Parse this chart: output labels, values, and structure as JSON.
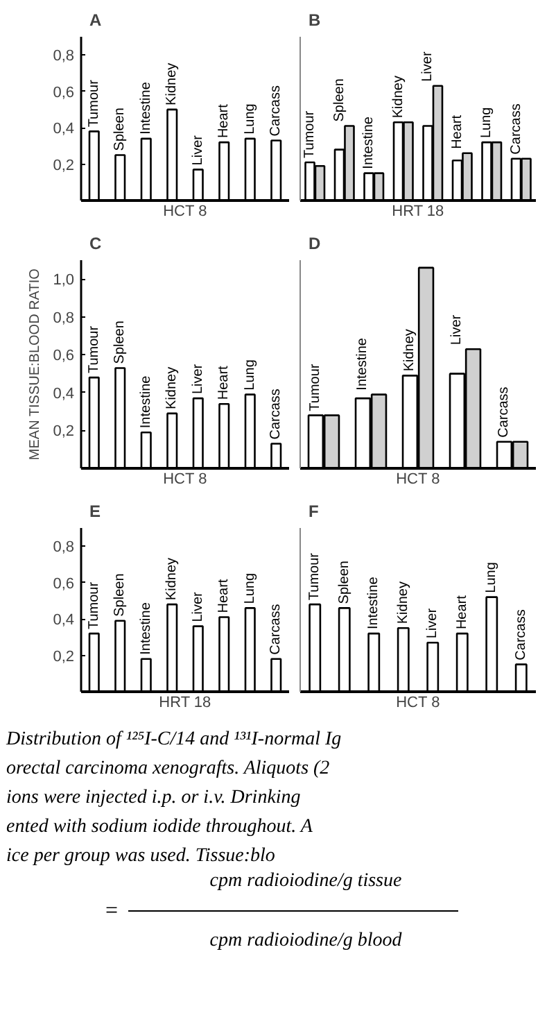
{
  "chart_data": [
    {
      "type": "bar",
      "title": "A",
      "xlabel": "HCT 8",
      "categories": [
        "Tumour",
        "Spleen",
        "Intestine",
        "Kidney",
        "Liver",
        "Heart",
        "Lung",
        "Carcass"
      ],
      "values": [
        0.38,
        0.25,
        0.34,
        0.5,
        0.17,
        0.32,
        0.34,
        0.33
      ],
      "color": "#ffffff",
      "ylim": [
        0,
        0.9
      ],
      "yticks": [
        {
          "value": 0.2,
          "label": "0,2"
        },
        {
          "value": 0.4,
          "label": "0,4"
        },
        {
          "value": 0.6,
          "label": "0,6"
        },
        {
          "value": 0.8,
          "label": "0,8"
        }
      ],
      "tick_labels": "y"
    },
    {
      "type": "bar",
      "title": "B",
      "xlabel": "HRT 18",
      "categories": [
        "Tumour",
        "Spleen",
        "Intestine",
        "Kidney",
        "Liver",
        "Heart",
        "Lung",
        "Carcass"
      ],
      "series": [
        {
          "color": "#ffffff",
          "values": [
            0.21,
            0.28,
            0.15,
            0.43,
            0.41,
            0.22,
            0.32,
            0.23
          ]
        },
        {
          "color": "#d0d0d0",
          "values": [
            0.19,
            0.41,
            0.15,
            0.43,
            0.63,
            0.26,
            0.32,
            0.23
          ]
        }
      ],
      "ylim": [
        0,
        0.9
      ],
      "tick_labels": false
    },
    {
      "type": "bar",
      "title": "C",
      "xlabel": "HCT 8",
      "ylabel": "MEAN TISSUE:BLOOD RATIO",
      "categories": [
        "Tumour",
        "Spleen",
        "Intestine",
        "Kidney",
        "Liver",
        "Heart",
        "Lung",
        "Carcass"
      ],
      "values": [
        0.48,
        0.53,
        0.19,
        0.29,
        0.37,
        0.34,
        0.39,
        0.13
      ],
      "color": "#ffffff",
      "ylim": [
        0,
        1.1
      ],
      "yticks": [
        {
          "value": 0.2,
          "label": "0,2"
        },
        {
          "value": 0.4,
          "label": "0,4"
        },
        {
          "value": 0.6,
          "label": "0,6"
        },
        {
          "value": 0.8,
          "label": "0,8"
        },
        {
          "value": 1.0,
          "label": "1,0"
        }
      ],
      "tick_labels": "y"
    },
    {
      "type": "bar",
      "title": "D",
      "xlabel": "HCT 8",
      "categories": [
        "Tumour",
        "Intestine",
        "Kidney",
        "Liver",
        "Carcass"
      ],
      "series": [
        {
          "color": "#ffffff",
          "values": [
            0.28,
            0.37,
            0.49,
            0.5,
            0.14
          ]
        },
        {
          "color": "#d0d0d0",
          "values": [
            0.28,
            0.39,
            1.06,
            0.63,
            0.14
          ]
        }
      ],
      "ylim": [
        0,
        1.1
      ],
      "tick_labels": false
    },
    {
      "type": "bar",
      "title": "E",
      "xlabel": "HRT 18",
      "categories": [
        "Tumour",
        "Spleen",
        "Intestine",
        "Kidney",
        "Liver",
        "Heart",
        "Lung",
        "Carcass"
      ],
      "values": [
        0.32,
        0.39,
        0.18,
        0.48,
        0.36,
        0.41,
        0.46,
        0.18
      ],
      "color": "#ffffff",
      "ylim": [
        0,
        0.9
      ],
      "yticks": [
        {
          "value": 0.2,
          "label": "0,2"
        },
        {
          "value": 0.4,
          "label": "0,4"
        },
        {
          "value": 0.6,
          "label": "0,6"
        },
        {
          "value": 0.8,
          "label": "0,8"
        }
      ],
      "tick_labels": "y"
    },
    {
      "type": "bar",
      "title": "F",
      "xlabel": "HCT 8",
      "categories": [
        "Tumour",
        "Spleen",
        "Intestine",
        "Kidney",
        "Liver",
        "Heart",
        "Lung",
        "Carcass"
      ],
      "values": [
        0.48,
        0.46,
        0.32,
        0.35,
        0.27,
        0.32,
        0.52,
        0.15
      ],
      "color": "#ffffff",
      "ylim": [
        0,
        0.9
      ],
      "tick_labels": false
    },
    {
      "type": "other",
      "annotations": [
        "Distribution of ¹²⁵I-C/14 and ¹³¹I-normal Ig",
        "orectal carcinoma xenografts. Aliquots (2",
        "ions were injected i.p. or i.v. Drinking",
        "ented with sodium iodide throughout. A",
        "ice per group was used. Tissue:blo",
        "cpm radioiodine/g tissue",
        "=",
        "cpm radioiodine/g blood"
      ]
    }
  ]
}
